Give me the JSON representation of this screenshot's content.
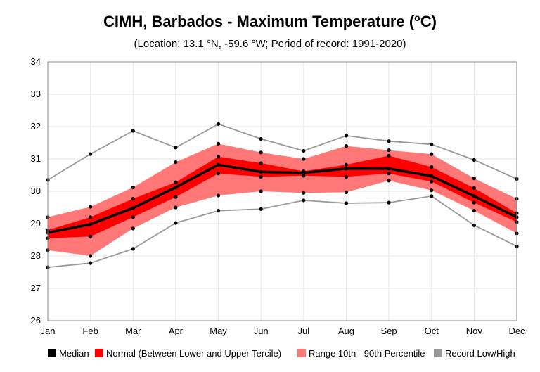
{
  "chart_data": {
    "type": "line",
    "title": "CIMH, Barbados - Maximum Temperature (",
    "title_sup": "o",
    "title_unit_suffix": "C)",
    "subtitle": "(Location: 13.1 °N, -59.6 °W; Period of record: 1991-2020)",
    "categories": [
      "Jan",
      "Feb",
      "Mar",
      "Apr",
      "May",
      "Jun",
      "Jul",
      "Aug",
      "Sep",
      "Oct",
      "Nov",
      "Dec"
    ],
    "ylim": [
      26,
      34
    ],
    "yticks": [
      "26",
      "27",
      "28",
      "29",
      "30",
      "31",
      "32",
      "33",
      "34"
    ],
    "grid": true,
    "legend_position": "bottom",
    "series": [
      {
        "name": "Median",
        "values": [
          28.72,
          28.98,
          29.48,
          30.12,
          30.82,
          30.6,
          30.57,
          30.7,
          30.7,
          30.47,
          29.85,
          29.2
        ],
        "color": "#000000"
      },
      {
        "name": "Normal (Between Lower and Upper Tercile)",
        "lower": [
          28.55,
          28.6,
          29.2,
          29.82,
          30.55,
          30.45,
          30.48,
          30.45,
          30.55,
          30.3,
          29.65,
          29.05
        ],
        "upper": [
          28.8,
          29.2,
          29.77,
          30.28,
          31.07,
          30.87,
          30.62,
          30.82,
          31.1,
          30.75,
          30.1,
          29.32
        ],
        "color": "#ff0000"
      },
      {
        "name": "Range 10th - 90th Percentile",
        "lower": [
          28.18,
          28.0,
          28.85,
          29.5,
          29.87,
          30.0,
          29.95,
          29.97,
          30.33,
          30.03,
          29.4,
          28.7
        ],
        "upper": [
          29.2,
          29.52,
          30.12,
          30.9,
          31.47,
          31.2,
          31.0,
          31.4,
          31.27,
          31.15,
          30.4,
          29.77
        ],
        "color": "#ff7777"
      },
      {
        "name": "Record Low/High",
        "lower": [
          27.65,
          27.78,
          28.22,
          29.02,
          29.4,
          29.45,
          29.72,
          29.63,
          29.65,
          29.85,
          28.95,
          28.3
        ],
        "upper": [
          30.35,
          31.15,
          31.87,
          31.35,
          32.08,
          31.62,
          31.25,
          31.72,
          31.55,
          31.45,
          30.97,
          30.38
        ],
        "color": "#999999"
      }
    ]
  }
}
